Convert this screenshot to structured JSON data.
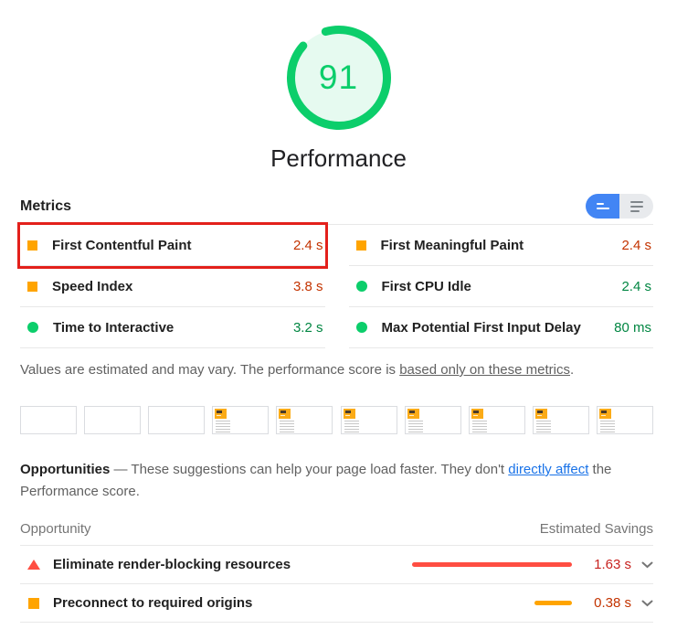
{
  "gauge": {
    "score": 91,
    "score_text": "91",
    "label": "Performance"
  },
  "metrics_section": {
    "title": "Metrics",
    "view_toggle": {
      "options": [
        {
          "icon": "condensed-view-icon",
          "active": true
        },
        {
          "icon": "list-view-icon",
          "active": false
        }
      ]
    },
    "columns": [
      {
        "rows": [
          {
            "label": "First Contentful Paint",
            "value": "2.4 s",
            "status": "average",
            "highlighted": true
          },
          {
            "label": "Speed Index",
            "value": "3.8 s",
            "status": "average",
            "highlighted": false
          },
          {
            "label": "Time to Interactive",
            "value": "3.2 s",
            "status": "pass",
            "highlighted": false
          }
        ]
      },
      {
        "rows": [
          {
            "label": "First Meaningful Paint",
            "value": "2.4 s",
            "status": "average",
            "highlighted": false
          },
          {
            "label": "First CPU Idle",
            "value": "2.4 s",
            "status": "pass",
            "highlighted": false
          },
          {
            "label": "Max Potential First Input Delay",
            "value": "80 ms",
            "status": "pass",
            "highlighted": false
          }
        ]
      }
    ],
    "note_prefix": "Values are estimated and may vary. The performance score is ",
    "note_link": "based only on these metrics",
    "note_suffix": "."
  },
  "filmstrip": {
    "frames": [
      "blank",
      "blank",
      "blank",
      "page",
      "page",
      "page",
      "page",
      "page",
      "page",
      "page"
    ]
  },
  "opportunities_section": {
    "heading": "Opportunities",
    "desc_dash": " — ",
    "desc_text": "These suggestions can help your page load faster. They don't ",
    "desc_link": "directly affect",
    "desc_suffix": " the Performance score.",
    "table_header": {
      "col1": "Opportunity",
      "col2": "Estimated Savings"
    },
    "bar_scale_max_s": 1.63,
    "rows": [
      {
        "label": "Eliminate render-blocking resources",
        "savings": "1.63 s",
        "savings_s": 1.63,
        "status": "fail"
      },
      {
        "label": "Preconnect to required origins",
        "savings": "0.38 s",
        "savings_s": 0.38,
        "status": "average"
      }
    ]
  },
  "colors": {
    "pass": "#0cce6b",
    "pass_text": "#018642",
    "average": "#ffa400",
    "average_text": "#c33300",
    "fail": "#ff4e42",
    "fail_text": "#c7221f",
    "accent_blue": "#4285f4",
    "link_blue": "#1a73e8",
    "highlight_red": "#e3201b"
  }
}
